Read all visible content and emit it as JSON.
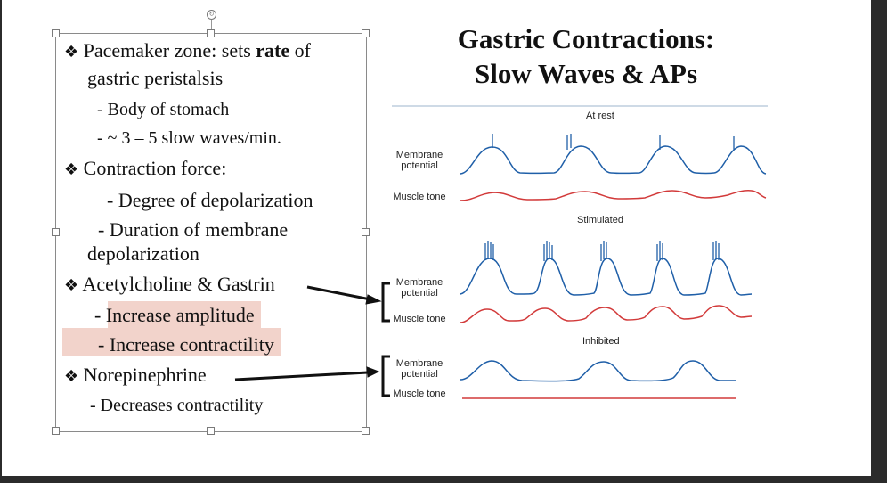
{
  "slide": {
    "title_line1": "Gastric Contractions:",
    "title_line2": "Slow Waves & APs",
    "bullets": {
      "b1_prefix": "Pacemaker zone: sets ",
      "b1_bold": "rate",
      "b1_suffix": " of",
      "b1_line2": "gastric peristalsis",
      "b1_sub1": "-  Body of stomach",
      "b1_sub2": "-  ~ 3 – 5 slow waves/min.",
      "b2": "Contraction force:",
      "b2_sub1": "- Degree of depolarization",
      "b2_sub2_line1": "- Duration of membrane",
      "b2_sub2_line2": "depolarization",
      "b3": "Acetylcholine & Gastrin",
      "b3_sub1": "- Increase amplitude",
      "b3_sub2": "- Increase contractility",
      "b4": "Norepinephrine",
      "b4_sub1": "- Decreases contractility"
    },
    "bullet_symbol": "❖",
    "figure": {
      "section_rest": "At rest",
      "section_stimulated": "Stimulated",
      "section_inhibited": "Inhibited",
      "label_membrane_line1": "Membrane",
      "label_membrane_line2": "potential",
      "label_muscle_tone": "Muscle tone"
    },
    "colors": {
      "membrane_trace": "#1f5fa8",
      "muscle_trace": "#d23a3a",
      "highlight": "#f2d3cb"
    },
    "rotate_handle_icon": "rotate-icon"
  }
}
